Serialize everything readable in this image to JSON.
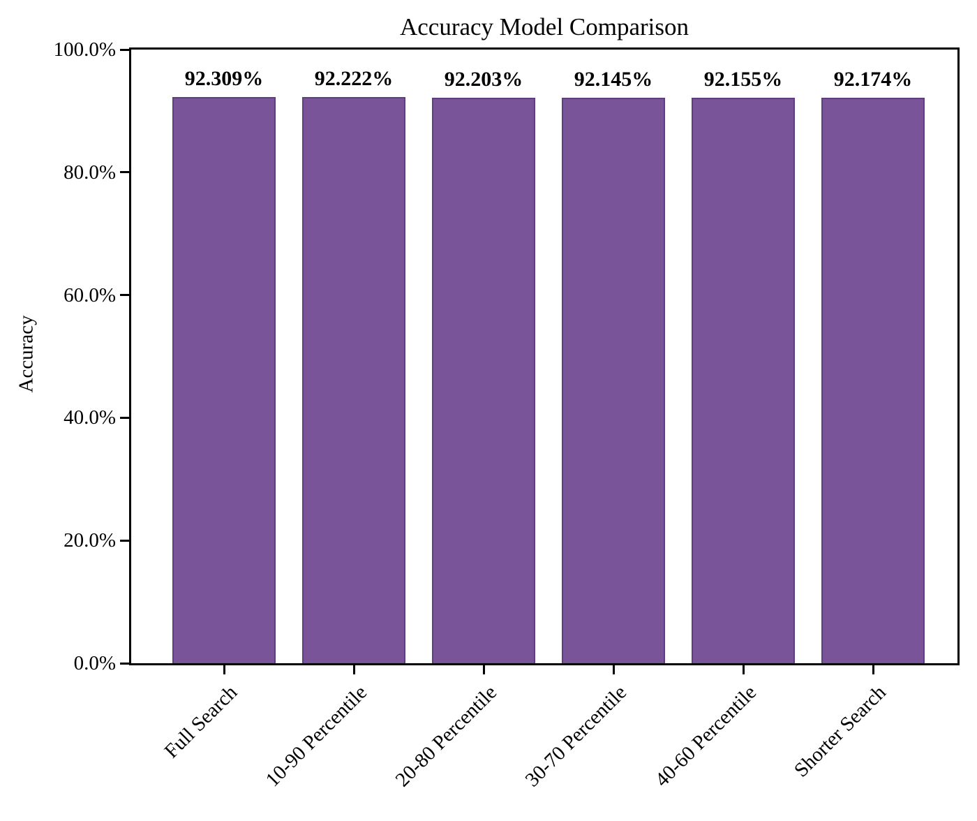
{
  "chart": {
    "title": "Accuracy Model Comparison",
    "ylabel": "Accuracy"
  },
  "chart_data": {
    "type": "bar",
    "title": "Accuracy Model Comparison",
    "xlabel": "",
    "ylabel": "Accuracy",
    "categories": [
      "Full Search",
      "10-90 Percentile",
      "20-80 Percentile",
      "30-70 Percentile",
      "40-60 Percentile",
      "Shorter Search"
    ],
    "values": [
      92.309,
      92.222,
      92.203,
      92.145,
      92.155,
      92.174
    ],
    "bar_labels": [
      "92.309%",
      "92.222%",
      "92.203%",
      "92.145%",
      "92.155%",
      "92.174%"
    ],
    "y_ticks": [
      0,
      20,
      40,
      60,
      80,
      100
    ],
    "y_tick_labels": [
      "0.0%",
      "20.0%",
      "40.0%",
      "60.0%",
      "80.0%",
      "100.0%"
    ],
    "ylim": [
      0,
      100
    ],
    "grid": false,
    "legend": null,
    "bar_color": "#7a5499",
    "bar_edge_color": "#5e3d80",
    "text_color": "#000000",
    "spine_color": "#000000"
  }
}
